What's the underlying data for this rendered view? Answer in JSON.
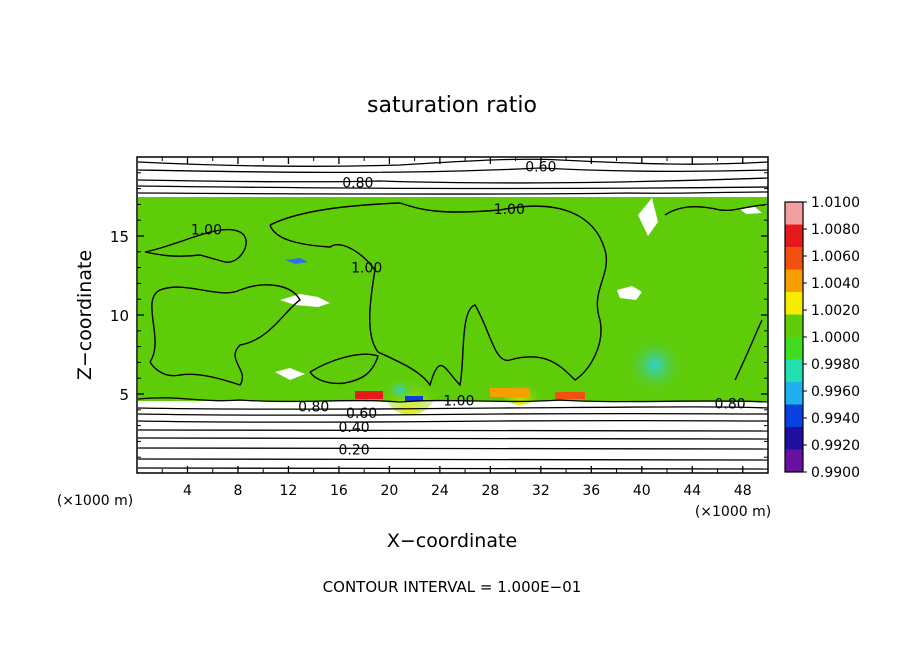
{
  "chart_data": {
    "type": "heatmap",
    "title": "saturation ratio",
    "xlabel": "X−coordinate",
    "ylabel": "Z−coordinate",
    "x_unit_label": "(×1000 m)",
    "z_unit_label": "(×1000 m)",
    "footer": "CONTOUR INTERVAL = 1.000E−01",
    "xlim": [
      0,
      50
    ],
    "ylim": [
      0,
      20
    ],
    "x_ticks": [
      4,
      8,
      12,
      16,
      20,
      24,
      28,
      32,
      36,
      40,
      44,
      48
    ],
    "y_ticks": [
      5,
      10,
      15
    ],
    "colorbar": {
      "labels": [
        "1.0100",
        "1.0080",
        "1.0060",
        "1.0040",
        "1.0020",
        "1.0000",
        "0.9980",
        "0.9960",
        "0.9940",
        "0.9920",
        "0.9900"
      ],
      "colors": [
        "#f5a0a0",
        "#e41a1a",
        "#f05010",
        "#f5a000",
        "#f5ec00",
        "#5fcc0a",
        "#3fdc20",
        "#20e0b0",
        "#20b0f0",
        "#0a40e0",
        "#2010a0",
        "#6a10a0"
      ]
    },
    "contour_labels": [
      {
        "text": "0.60",
        "x": 32.0,
        "z": 19.4
      },
      {
        "text": "0.80",
        "x": 17.5,
        "z": 18.4
      },
      {
        "text": "1.00",
        "x": 5.5,
        "z": 15.4
      },
      {
        "text": "1.00",
        "x": 29.5,
        "z": 16.7
      },
      {
        "text": "1.00",
        "x": 18.2,
        "z": 13.0
      },
      {
        "text": "1.00",
        "x": 25.5,
        "z": 4.6
      },
      {
        "text": "0.80",
        "x": 14.0,
        "z": 4.2
      },
      {
        "text": "0.60",
        "x": 17.8,
        "z": 3.8
      },
      {
        "text": "0.40",
        "x": 17.2,
        "z": 2.9
      },
      {
        "text": "0.20",
        "x": 17.2,
        "z": 1.5
      },
      {
        "text": "0.80",
        "x": 47.0,
        "z": 4.4
      }
    ]
  }
}
